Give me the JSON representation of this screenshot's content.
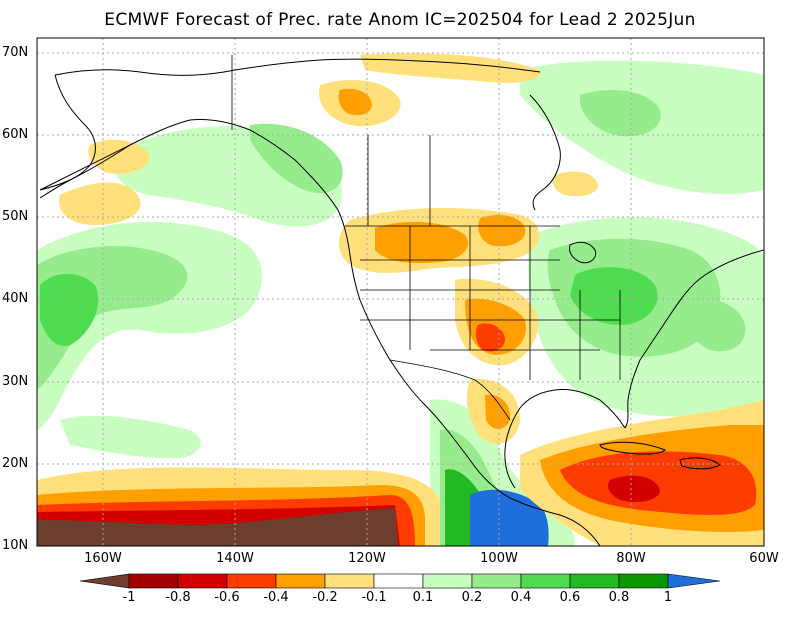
{
  "title": "ECMWF Forecast of Prec. rate Anom IC=202504 for Lead 2 2025Jun",
  "lat_labels": [
    "70N",
    "60N",
    "50N",
    "40N",
    "30N",
    "20N",
    "10N"
  ],
  "lon_labels": [
    "160W",
    "140W",
    "120W",
    "100W",
    "80W",
    "60W"
  ],
  "colorbar": {
    "labels": [
      "-1",
      "-0.8",
      "-0.6",
      "-0.4",
      "-0.2",
      "-0.1",
      "0.1",
      "0.2",
      "0.4",
      "0.6",
      "0.8",
      "1"
    ],
    "colors": [
      "#6b3e2e",
      "#a50000",
      "#d40000",
      "#ff3c00",
      "#ff9f00",
      "#ffe07a",
      "#ffffff",
      "#c8ffc0",
      "#96eb8c",
      "#50dc50",
      "#23b923",
      "#0a9600",
      "#1e6fdc"
    ]
  },
  "colors": {
    "land_line": "#000000",
    "grid": "#aaaaaa",
    "dry_light": "#ffe07a",
    "dry_mid": "#ff9f00",
    "dry_strong": "#ff3c00",
    "dry_deep": "#d40000",
    "dry_extreme": "#6b3e2e",
    "wet_light": "#c8ffc0",
    "wet_mid": "#96eb8c",
    "wet_strong": "#50dc50",
    "wet_deep": "#23b923",
    "wet_extreme": "#1e6fdc"
  }
}
